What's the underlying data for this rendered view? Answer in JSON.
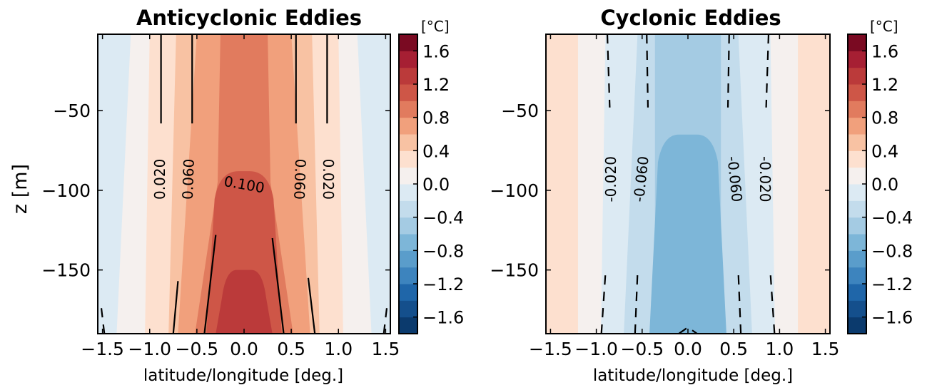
{
  "chart_data": [
    {
      "type": "contour",
      "title": "Anticyclonic Eddies",
      "xlabel": "latitude/longitude [deg.]",
      "ylabel": "z [m]",
      "xlim": [
        -1.55,
        1.55
      ],
      "ylim": [
        -190,
        -2
      ],
      "x_ticks": [
        -1.5,
        -1.0,
        -0.5,
        0.0,
        0.5,
        1.0,
        1.5
      ],
      "x_tick_labels": [
        "−1.5",
        "−1.0",
        "−0.5",
        "0.0",
        "0.5",
        "1.0",
        "1.5"
      ],
      "y_ticks": [
        -50,
        -100,
        -150
      ],
      "y_tick_labels": [
        "−50",
        "−100",
        "−150"
      ],
      "fill_bands": [
        {
          "level": 0.0,
          "halfwidth_top": 1.2,
          "halfwidth_bottom": 1.35
        },
        {
          "level": 0.2,
          "halfwidth_top": 1.0,
          "halfwidth_bottom": 1.05
        },
        {
          "level": 0.4,
          "halfwidth_top": 0.72,
          "halfwidth_bottom": 0.8
        },
        {
          "level": 0.6,
          "halfwidth_top": 0.5,
          "halfwidth_bottom": 0.7
        },
        {
          "level": 0.8,
          "halfwidth_top": 0.25,
          "halfwidth_bottom": 0.52,
          "neck_y": -95,
          "neck_halfwidth": 0.28
        }
      ],
      "core_patches": [
        {
          "level": 1.0,
          "top_y": -88,
          "halfwidth_at_top": 0.06,
          "halfwidth_bottom": 0.4
        },
        {
          "level": 1.2,
          "top_y": -150,
          "halfwidth_at_top": 0.08,
          "halfwidth_bottom": 0.3
        }
      ],
      "contour_lines": [
        {
          "label": "0.020",
          "style": "solid",
          "x_top": -0.88,
          "x_bottom": -0.88,
          "side": "both"
        },
        {
          "label": "0.060",
          "style": "solid",
          "x_top": -0.55,
          "x_bottom": -0.55,
          "side": "both"
        },
        {
          "label": "0.100",
          "style": "solid",
          "side": "center"
        }
      ],
      "contour_labels": [
        "0.020",
        "0.060",
        "0.100",
        "0.060",
        "0.020"
      ]
    },
    {
      "type": "contour",
      "title": "Cyclonic Eddies",
      "xlabel": "latitude/longitude [deg.]",
      "ylabel": "",
      "xlim": [
        -1.55,
        1.55
      ],
      "ylim": [
        -190,
        -2
      ],
      "x_ticks": [
        -1.5,
        -1.0,
        -0.5,
        0.0,
        0.5,
        1.0,
        1.5
      ],
      "x_tick_labels": [
        "−1.5",
        "−1.0",
        "−0.5",
        "0.0",
        "0.5",
        "1.0",
        "1.5"
      ],
      "y_ticks": [
        -50,
        -100,
        -150
      ],
      "y_tick_labels": [
        "−50",
        "−100",
        "−150"
      ],
      "fill_bands": [
        {
          "level": 0.0,
          "halfwidth_top": 1.2,
          "halfwidth_bottom": 1.2
        },
        {
          "level": -0.2,
          "halfwidth_top": 0.9,
          "halfwidth_bottom": 0.95
        },
        {
          "level": -0.4,
          "halfwidth_top": 0.55,
          "halfwidth_bottom": 0.7
        },
        {
          "level": -0.6,
          "halfwidth_top": 0.36,
          "halfwidth_bottom": 0.36
        }
      ],
      "core_patches": [
        {
          "level": -0.8,
          "top_y": -65,
          "halfwidth_at_top": 0.1,
          "halfwidth_bottom": 0.42
        }
      ],
      "contour_lines": [
        {
          "label": "-0.020",
          "style": "dashed",
          "x_top": -0.88,
          "x_bottom": -0.88,
          "side": "both"
        },
        {
          "label": "-0.060",
          "style": "dashed",
          "x_top": -0.52,
          "x_bottom": -0.52,
          "side": "both"
        }
      ],
      "contour_labels": [
        "-0.020",
        "-0.060",
        "-0.060",
        "-0.020"
      ]
    }
  ],
  "colorbar": {
    "unit_label": "[°C]",
    "levels": [
      -1.8,
      -1.6,
      -1.4,
      -1.2,
      -1.0,
      -0.8,
      -0.6,
      -0.4,
      -0.2,
      0.0,
      0.2,
      0.4,
      0.6,
      0.8,
      1.0,
      1.2,
      1.4,
      1.6,
      1.8
    ],
    "colors": [
      "#0b3a6d",
      "#144f8c",
      "#1f66a9",
      "#3d84be",
      "#5a9dcb",
      "#7db6d8",
      "#a4cbe3",
      "#c3dcec",
      "#dceaf3",
      "#f5f0ee",
      "#fde0cf",
      "#f8c2a3",
      "#f1a07c",
      "#e17b5e",
      "#ce5647",
      "#bb3a3a",
      "#a61f33",
      "#7a0a22"
    ],
    "tick_values": [
      1.6,
      1.2,
      0.8,
      0.4,
      0.0,
      -0.4,
      -0.8,
      -1.2,
      -1.6
    ],
    "tick_labels": [
      "1.6",
      "1.2",
      "0.8",
      "0.4",
      "0.0",
      "−0.4",
      "−0.8",
      "−1.2",
      "−1.6"
    ]
  }
}
